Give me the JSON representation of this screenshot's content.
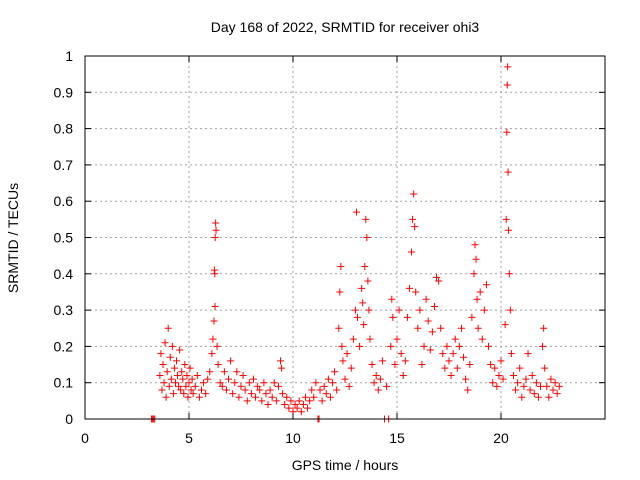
{
  "chart_data": {
    "type": "scatter",
    "title": "Day 168 of 2022, SRMTID for receiver ohi3",
    "xlabel": "GPS time / hours",
    "ylabel": "SRMTID / TECUs",
    "xlim": [
      0,
      25
    ],
    "ylim": [
      0,
      1
    ],
    "xticks": [
      0,
      5,
      10,
      15,
      20
    ],
    "yticks": [
      0,
      0.1,
      0.2,
      0.3,
      0.4,
      0.5,
      0.6,
      0.7,
      0.8,
      0.9,
      1
    ],
    "xtick_labels": [
      "0",
      "5",
      "10",
      "15",
      "20"
    ],
    "ytick_labels": [
      "0",
      "0.1",
      "0.2",
      "0.3",
      "0.4",
      "0.5",
      "0.6",
      "0.7",
      "0.8",
      "0.9",
      "1"
    ],
    "grid": true,
    "marker": "+",
    "color": "#ff0000",
    "series": [
      {
        "name": "SRMTID",
        "points": [
          [
            3.2,
            0
          ],
          [
            3.25,
            0
          ],
          [
            3.3,
            0
          ],
          [
            3.35,
            0
          ],
          [
            3.6,
            0.12
          ],
          [
            3.65,
            0.18
          ],
          [
            3.7,
            0.08
          ],
          [
            3.75,
            0.15
          ],
          [
            3.8,
            0.1
          ],
          [
            3.85,
            0.21
          ],
          [
            3.9,
            0.06
          ],
          [
            3.95,
            0.13
          ],
          [
            4.0,
            0.25
          ],
          [
            4.05,
            0.09
          ],
          [
            4.1,
            0.17
          ],
          [
            4.15,
            0.11
          ],
          [
            4.2,
            0.2
          ],
          [
            4.25,
            0.07
          ],
          [
            4.3,
            0.14
          ],
          [
            4.35,
            0.1
          ],
          [
            4.4,
            0.16
          ],
          [
            4.45,
            0.12
          ],
          [
            4.5,
            0.09
          ],
          [
            4.55,
            0.19
          ],
          [
            4.6,
            0.08
          ],
          [
            4.65,
            0.13
          ],
          [
            4.7,
            0.11
          ],
          [
            4.75,
            0.07
          ],
          [
            4.8,
            0.15
          ],
          [
            4.85,
            0.09
          ],
          [
            4.9,
            0.12
          ],
          [
            4.95,
            0.06
          ],
          [
            5.0,
            0.1
          ],
          [
            5.05,
            0.14
          ],
          [
            5.1,
            0.08
          ],
          [
            5.15,
            0.11
          ],
          [
            5.2,
            0.07
          ],
          [
            5.3,
            0.09
          ],
          [
            5.4,
            0.12
          ],
          [
            5.5,
            0.06
          ],
          [
            5.6,
            0.08
          ],
          [
            5.7,
            0.1
          ],
          [
            5.8,
            0.07
          ],
          [
            5.9,
            0.11
          ],
          [
            6.0,
            0.13
          ],
          [
            6.1,
            0.18
          ],
          [
            6.15,
            0.22
          ],
          [
            6.2,
            0.27
          ],
          [
            6.25,
            0.31
          ],
          [
            6.22,
            0.41
          ],
          [
            6.26,
            0.5
          ],
          [
            6.28,
            0.54
          ],
          [
            6.3,
            0.52
          ],
          [
            6.24,
            0.4
          ],
          [
            6.35,
            0.2
          ],
          [
            6.4,
            0.15
          ],
          [
            6.5,
            0.1
          ],
          [
            6.6,
            0.09
          ],
          [
            6.7,
            0.13
          ],
          [
            6.8,
            0.08
          ],
          [
            6.9,
            0.11
          ],
          [
            7.0,
            0.16
          ],
          [
            7.1,
            0.07
          ],
          [
            7.2,
            0.1
          ],
          [
            7.3,
            0.13
          ],
          [
            7.4,
            0.06
          ],
          [
            7.5,
            0.09
          ],
          [
            7.6,
            0.12
          ],
          [
            7.7,
            0.08
          ],
          [
            7.8,
            0.05
          ],
          [
            7.9,
            0.1
          ],
          [
            8.0,
            0.07
          ],
          [
            8.1,
            0.11
          ],
          [
            8.2,
            0.06
          ],
          [
            8.3,
            0.09
          ],
          [
            8.4,
            0.08
          ],
          [
            8.5,
            0.05
          ],
          [
            8.6,
            0.1
          ],
          [
            8.7,
            0.07
          ],
          [
            8.8,
            0.04
          ],
          [
            8.9,
            0.08
          ],
          [
            9.0,
            0.06
          ],
          [
            9.1,
            0.1
          ],
          [
            9.2,
            0.05
          ],
          [
            9.3,
            0.09
          ],
          [
            9.4,
            0.16
          ],
          [
            9.45,
            0.14
          ],
          [
            9.5,
            0.07
          ],
          [
            9.6,
            0.04
          ],
          [
            9.7,
            0.06
          ],
          [
            9.8,
            0.03
          ],
          [
            9.9,
            0.05
          ],
          [
            10.0,
            0.02
          ],
          [
            10.1,
            0.04
          ],
          [
            10.2,
            0.03
          ],
          [
            10.3,
            0.05
          ],
          [
            10.4,
            0.02
          ],
          [
            10.5,
            0.04
          ],
          [
            10.6,
            0.06
          ],
          [
            10.7,
            0.03
          ],
          [
            10.8,
            0.05
          ],
          [
            10.9,
            0.08
          ],
          [
            11.0,
            0.06
          ],
          [
            11.1,
            0.1
          ],
          [
            11.2,
            0
          ],
          [
            11.25,
            0
          ],
          [
            11.3,
            0.08
          ],
          [
            11.4,
            0.05
          ],
          [
            11.5,
            0.09
          ],
          [
            11.6,
            0.07
          ],
          [
            11.7,
            0.11
          ],
          [
            11.8,
            0.06
          ],
          [
            11.9,
            0.1
          ],
          [
            12.0,
            0.13
          ],
          [
            12.1,
            0.08
          ],
          [
            12.2,
            0.25
          ],
          [
            12.25,
            0.35
          ],
          [
            12.3,
            0.42
          ],
          [
            12.35,
            0.2
          ],
          [
            12.4,
            0.16
          ],
          [
            12.5,
            0.11
          ],
          [
            12.6,
            0.18
          ],
          [
            12.7,
            0.09
          ],
          [
            12.8,
            0.14
          ],
          [
            12.9,
            0.22
          ],
          [
            13.0,
            0.3
          ],
          [
            13.05,
            0.57
          ],
          [
            13.1,
            0.28
          ],
          [
            13.2,
            0.2
          ],
          [
            13.3,
            0.36
          ],
          [
            13.35,
            0.32
          ],
          [
            13.4,
            0.26
          ],
          [
            13.45,
            0.42
          ],
          [
            13.5,
            0.55
          ],
          [
            13.55,
            0.5
          ],
          [
            13.6,
            0.38
          ],
          [
            13.65,
            0.3
          ],
          [
            13.7,
            0.22
          ],
          [
            13.8,
            0.15
          ],
          [
            13.9,
            0.1
          ],
          [
            14.0,
            0.12
          ],
          [
            14.1,
            0.08
          ],
          [
            14.2,
            0.11
          ],
          [
            14.3,
            0.16
          ],
          [
            14.4,
            0
          ],
          [
            14.6,
            0
          ],
          [
            14.5,
            0.09
          ],
          [
            14.7,
            0.2
          ],
          [
            14.75,
            0.33
          ],
          [
            14.8,
            0.28
          ],
          [
            14.9,
            0.15
          ],
          [
            15.0,
            0.22
          ],
          [
            15.1,
            0.3
          ],
          [
            15.2,
            0.18
          ],
          [
            15.3,
            0.12
          ],
          [
            15.4,
            0.16
          ],
          [
            15.5,
            0.28
          ],
          [
            15.6,
            0.36
          ],
          [
            15.7,
            0.46
          ],
          [
            15.75,
            0.55
          ],
          [
            15.8,
            0.62
          ],
          [
            15.85,
            0.53
          ],
          [
            15.9,
            0.35
          ],
          [
            16.0,
            0.25
          ],
          [
            16.1,
            0.3
          ],
          [
            16.2,
            0.15
          ],
          [
            16.3,
            0.2
          ],
          [
            16.4,
            0.33
          ],
          [
            16.5,
            0.27
          ],
          [
            16.6,
            0.19
          ],
          [
            16.7,
            0.24
          ],
          [
            16.8,
            0.31
          ],
          [
            16.9,
            0.39
          ],
          [
            17.0,
            0.38
          ],
          [
            17.1,
            0.25
          ],
          [
            17.2,
            0.18
          ],
          [
            17.3,
            0.14
          ],
          [
            17.4,
            0.2
          ],
          [
            17.5,
            0.16
          ],
          [
            17.6,
            0.12
          ],
          [
            17.7,
            0.18
          ],
          [
            17.8,
            0.22
          ],
          [
            17.9,
            0.14
          ],
          [
            18.0,
            0.2
          ],
          [
            18.1,
            0.25
          ],
          [
            18.2,
            0.17
          ],
          [
            18.3,
            0.11
          ],
          [
            18.4,
            0.08
          ],
          [
            18.5,
            0.15
          ],
          [
            18.6,
            0.28
          ],
          [
            18.7,
            0.4
          ],
          [
            18.75,
            0.48
          ],
          [
            18.8,
            0.44
          ],
          [
            18.85,
            0.33
          ],
          [
            18.9,
            0.25
          ],
          [
            19.0,
            0.35
          ],
          [
            19.1,
            0.22
          ],
          [
            19.2,
            0.3
          ],
          [
            19.3,
            0.37
          ],
          [
            19.4,
            0.2
          ],
          [
            19.5,
            0.15
          ],
          [
            19.6,
            0.1
          ],
          [
            19.7,
            0.14
          ],
          [
            19.8,
            0.09
          ],
          [
            19.9,
            0.12
          ],
          [
            20.0,
            0.16
          ],
          [
            20.1,
            0.11
          ],
          [
            20.2,
            0.26
          ],
          [
            20.25,
            0.55
          ],
          [
            20.28,
            0.79
          ],
          [
            20.3,
            0.92
          ],
          [
            20.32,
            0.97
          ],
          [
            20.34,
            0.68
          ],
          [
            20.36,
            0.52
          ],
          [
            20.4,
            0.4
          ],
          [
            20.45,
            0.3
          ],
          [
            20.5,
            0.18
          ],
          [
            20.6,
            0.12
          ],
          [
            20.7,
            0.08
          ],
          [
            20.8,
            0.1
          ],
          [
            20.9,
            0.14
          ],
          [
            21.0,
            0.06
          ],
          [
            21.1,
            0.09
          ],
          [
            21.2,
            0.11
          ],
          [
            21.3,
            0.18
          ],
          [
            21.4,
            0.08
          ],
          [
            21.5,
            0.12
          ],
          [
            21.6,
            0.07
          ],
          [
            21.7,
            0.1
          ],
          [
            21.8,
            0.06
          ],
          [
            21.9,
            0.09
          ],
          [
            22.0,
            0.2
          ],
          [
            22.05,
            0.25
          ],
          [
            22.1,
            0.14
          ],
          [
            22.2,
            0.09
          ],
          [
            22.3,
            0.06
          ],
          [
            22.4,
            0.11
          ],
          [
            22.5,
            0.08
          ],
          [
            22.6,
            0.1
          ],
          [
            22.7,
            0.07
          ],
          [
            22.8,
            0.09
          ]
        ]
      }
    ]
  }
}
